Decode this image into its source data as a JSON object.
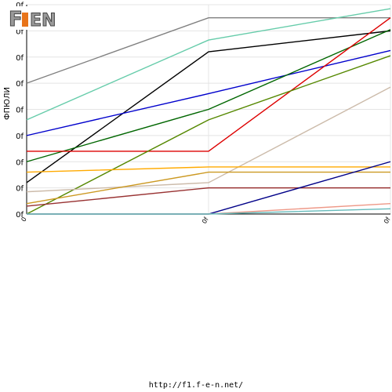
{
  "chart_data": {
    "type": "line",
    "categories": [
      "0",
      "0f",
      "0f"
    ],
    "ylabel": "ФПЮЛИ",
    "yticks": [
      "0f",
      "0f",
      "0f",
      "0f",
      "0f",
      "0f",
      "0f",
      "0f",
      "0f"
    ],
    "ylim": [
      0,
      8
    ],
    "grid": true,
    "series": [
      {
        "color": "#808080",
        "values": [
          5.0,
          7.5,
          7.5
        ]
      },
      {
        "color": "#66ccaa",
        "values": [
          3.6,
          6.65,
          7.85
        ]
      },
      {
        "color": "#000000",
        "values": [
          1.2,
          6.2,
          7.0
        ]
      },
      {
        "color": "#0000cc",
        "values": [
          3.0,
          4.6,
          6.25
        ]
      },
      {
        "color": "#006600",
        "values": [
          2.0,
          4.0,
          7.05
        ]
      },
      {
        "color": "#dd0000",
        "values": [
          2.4,
          2.4,
          7.5
        ]
      },
      {
        "color": "#558800",
        "values": [
          0.0,
          3.6,
          6.05
        ]
      },
      {
        "color": "#ccbbaa",
        "values": [
          0.85,
          1.2,
          4.85
        ]
      },
      {
        "color": "#ffaa00",
        "values": [
          1.6,
          1.8,
          1.8
        ]
      },
      {
        "color": "#cc9922",
        "values": [
          0.4,
          1.6,
          1.6
        ]
      },
      {
        "color": "#993333",
        "values": [
          0.3,
          1.0,
          1.0
        ]
      },
      {
        "color": "#000088",
        "values": [
          0.0,
          0.0,
          2.0
        ]
      },
      {
        "color": "#ee9988",
        "values": [
          0.0,
          0.0,
          0.4
        ]
      },
      {
        "color": "#66bbbb",
        "values": [
          0.0,
          0.0,
          0.2
        ]
      }
    ]
  },
  "logo": {
    "text": "F1EN"
  },
  "footer": {
    "url": "http://f1.f-e-n.net/"
  }
}
